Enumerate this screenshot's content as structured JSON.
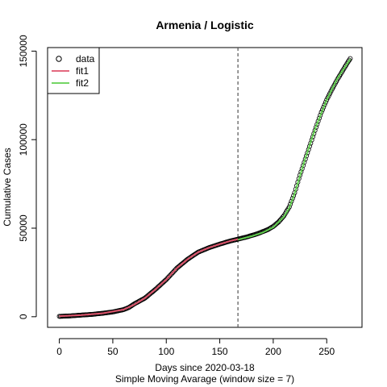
{
  "chart_data": {
    "type": "scatter",
    "title": "Armenia / Logistic",
    "xlabel": "Days since 2020-03-18",
    "xlabel2": "Simple Moving Avarage (window size = 7)",
    "ylabel": "Cumulative Cases",
    "xlim": [
      -11,
      283
    ],
    "ylim": [
      -6000,
      152000
    ],
    "xticks": [
      0,
      50,
      100,
      150,
      200,
      250
    ],
    "yticks": [
      0,
      50000,
      100000,
      150000
    ],
    "xtick_labels": [
      "0",
      "50",
      "100",
      "150",
      "200",
      "250"
    ],
    "ytick_labels": [
      "0",
      "50000",
      "100000",
      "150000"
    ],
    "vline_x": 167,
    "legend": {
      "position": "top-left",
      "entries": [
        "data",
        "fit1",
        "fit2"
      ]
    },
    "colors": {
      "data": "#000000",
      "fit1": "#DF536B",
      "fit2": "#61D04F",
      "vline": "#555555"
    },
    "data_points": [
      [
        0,
        200
      ],
      [
        10,
        450
      ],
      [
        20,
        900
      ],
      [
        30,
        1300
      ],
      [
        40,
        1900
      ],
      [
        50,
        2700
      ],
      [
        60,
        4000
      ],
      [
        65,
        5200
      ],
      [
        70,
        7200
      ],
      [
        80,
        10500
      ],
      [
        90,
        15500
      ],
      [
        100,
        21000
      ],
      [
        110,
        27500
      ],
      [
        120,
        32500
      ],
      [
        130,
        36500
      ],
      [
        140,
        39000
      ],
      [
        150,
        41000
      ],
      [
        160,
        42800
      ],
      [
        167,
        43800
      ],
      [
        175,
        45000
      ],
      [
        185,
        46800
      ],
      [
        195,
        49200
      ],
      [
        200,
        51000
      ],
      [
        205,
        53500
      ],
      [
        210,
        57000
      ],
      [
        215,
        62000
      ],
      [
        220,
        70000
      ],
      [
        225,
        80000
      ],
      [
        230,
        89000
      ],
      [
        235,
        98000
      ],
      [
        240,
        107000
      ],
      [
        245,
        115500
      ],
      [
        250,
        122500
      ],
      [
        255,
        128500
      ],
      [
        260,
        134000
      ],
      [
        265,
        139000
      ],
      [
        270,
        144000
      ],
      [
        272,
        145800
      ]
    ],
    "series": [
      {
        "name": "fit1",
        "x": [
          0,
          20,
          40,
          60,
          70,
          80,
          90,
          100,
          110,
          120,
          130,
          140,
          150,
          160,
          167
        ],
        "y": [
          300,
          900,
          1900,
          4000,
          6800,
          10500,
          15500,
          21000,
          27500,
          32500,
          36500,
          39000,
          41000,
          42800,
          43800
        ]
      },
      {
        "name": "fit2",
        "x": [
          167,
          180,
          190,
          200,
          210,
          215,
          220,
          225,
          230,
          240,
          250,
          260,
          272
        ],
        "y": [
          43500,
          45500,
          47500,
          50500,
          56500,
          61500,
          69500,
          79500,
          89500,
          107500,
          122500,
          134500,
          145500
        ]
      }
    ]
  }
}
